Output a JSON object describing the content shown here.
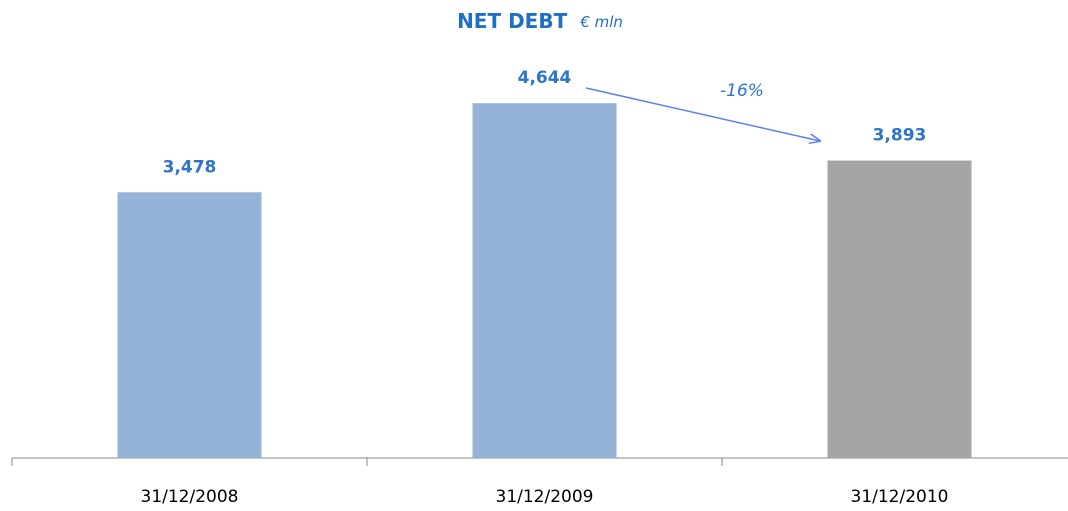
{
  "chart_data": {
    "type": "bar",
    "title": "NET DEBT",
    "subtitle": "€ mln",
    "categories": [
      "31/12/2008",
      "31/12/2009",
      "31/12/2010"
    ],
    "values": [
      3478,
      4644,
      3893
    ],
    "value_labels": [
      "3,478",
      "4,644",
      "3,893"
    ],
    "colors": [
      "#95b3d7",
      "#95b3d7",
      "#a5a5a5"
    ],
    "ylim": [
      0,
      5000
    ],
    "annotation": "-16%"
  }
}
